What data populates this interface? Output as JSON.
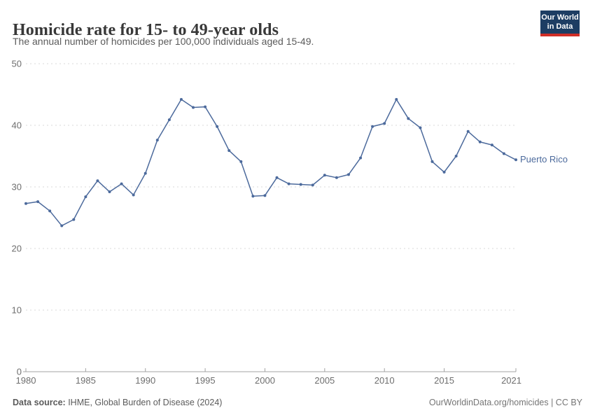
{
  "header": {
    "title": "Homicide rate for 15- to 49-year olds",
    "subtitle": "The annual number of homicides per 100,000 individuals aged 15-49.",
    "logo": {
      "line1": "Our World",
      "line2": "in Data",
      "bg_color": "#1d3d63",
      "accent_color": "#cf2e27"
    }
  },
  "chart_data": {
    "type": "line",
    "title": "Homicide rate for 15- to 49-year olds",
    "xlabel": "",
    "ylabel": "",
    "xlim": [
      1980,
      2021
    ],
    "ylim": [
      0,
      50
    ],
    "xticks": [
      1980,
      1985,
      1990,
      1995,
      2000,
      2005,
      2010,
      2015,
      2021
    ],
    "yticks": [
      0,
      10,
      20,
      30,
      40,
      50
    ],
    "grid": "horizontal-dashed",
    "legend_position": "end-of-line-label",
    "grid_color": "#dadada",
    "axis_color": "#a3a3a3",
    "tick_label_color": "#6e6e6e",
    "series": [
      {
        "name": "Puerto Rico",
        "color": "#4c6a9c",
        "x": [
          1980,
          1981,
          1982,
          1983,
          1984,
          1985,
          1986,
          1987,
          1988,
          1989,
          1990,
          1991,
          1992,
          1993,
          1994,
          1995,
          1996,
          1997,
          1998,
          1999,
          2000,
          2001,
          2002,
          2003,
          2004,
          2005,
          2006,
          2007,
          2008,
          2009,
          2010,
          2011,
          2012,
          2013,
          2014,
          2015,
          2016,
          2017,
          2018,
          2019,
          2020,
          2021
        ],
        "values": [
          27.3,
          27.6,
          26.1,
          23.7,
          24.7,
          28.4,
          31.0,
          29.2,
          30.5,
          28.7,
          32.2,
          37.6,
          40.9,
          44.2,
          42.9,
          43.0,
          39.8,
          35.9,
          34.1,
          28.5,
          28.6,
          31.5,
          30.5,
          30.4,
          30.3,
          31.9,
          31.5,
          32.0,
          34.7,
          39.8,
          40.3,
          44.2,
          41.1,
          39.6,
          34.1,
          32.4,
          35.0,
          39.0,
          37.3,
          36.8,
          35.4,
          34.4
        ]
      }
    ]
  },
  "footer": {
    "source_label": "Data source:",
    "source_text": " IHME, Global Burden of Disease (2024)",
    "right_text": "OurWorldinData.org/homicides | CC BY"
  }
}
